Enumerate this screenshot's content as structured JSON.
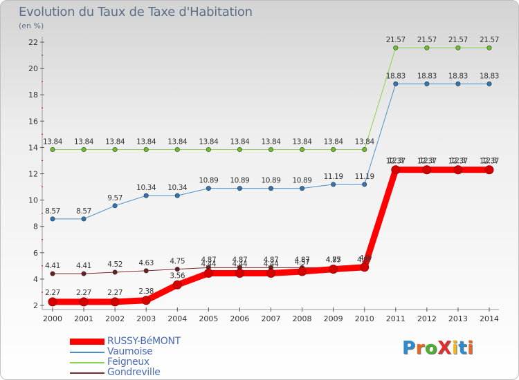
{
  "title": "Evolution du Taux de Taxe d'Habitation",
  "subtitle": "(en %)",
  "logo": {
    "text": "ProXiti",
    "letters": [
      "P",
      "r",
      "o",
      "X",
      "i",
      "t",
      "i"
    ],
    "colors": [
      "#2e8bd0",
      "#e8682a",
      "#4caf2f",
      "#e22d2d",
      "#f2b51c",
      "#2e8bd0",
      "#e8682a"
    ]
  },
  "chart_data": {
    "type": "line",
    "title": "Evolution du Taux de Taxe d'Habitation",
    "subtitle": "(en %)",
    "x": [
      "2000",
      "2001",
      "2002",
      "2003",
      "2004",
      "2005",
      "2006",
      "2007",
      "2008",
      "2009",
      "2010",
      "2011",
      "2012",
      "2013",
      "2014"
    ],
    "ylim": [
      2,
      22
    ],
    "yticks": [
      "2",
      "4",
      "6",
      "8",
      "10",
      "12",
      "14",
      "16",
      "18",
      "20",
      "22"
    ],
    "grid": false,
    "legend_position": "bottom-left",
    "series": [
      {
        "name": "RUSSY-BéMONT",
        "color": "#ff0000",
        "marker": "#d40000",
        "width": 9,
        "labels_above": false,
        "values": [
          2.27,
          2.27,
          2.27,
          2.38,
          3.56,
          4.44,
          4.44,
          4.44,
          4.57,
          4.75,
          4.9,
          12.3,
          12.3,
          12.3,
          12.3
        ],
        "labels": [
          "2.27",
          "2.27",
          "2.27",
          "2.38",
          "3.56",
          "4.44",
          "4.44",
          "4.44",
          "4.57",
          "4.75",
          "4.9",
          "12.3",
          "12.3",
          "12.3",
          "12.3"
        ]
      },
      {
        "name": "Vaumoise",
        "color": "#4b8fc9",
        "marker": "#2f74b5",
        "width": 1,
        "labels_above": true,
        "values": [
          8.57,
          8.57,
          9.57,
          10.34,
          10.34,
          10.89,
          10.89,
          10.89,
          10.89,
          11.19,
          11.19,
          18.83,
          18.83,
          18.83,
          18.83
        ],
        "labels": [
          "8.57",
          "8.57",
          "9.57",
          "10.34",
          "10.34",
          "10.89",
          "10.89",
          "10.89",
          "10.89",
          "11.19",
          "11.19",
          "18.83",
          "18.83",
          "18.83",
          "18.83"
        ]
      },
      {
        "name": "Feigneux",
        "color": "#8ad24a",
        "marker": "#6cbf2a",
        "width": 1,
        "labels_above": true,
        "values": [
          13.84,
          13.84,
          13.84,
          13.84,
          13.84,
          13.84,
          13.84,
          13.84,
          13.84,
          13.84,
          13.84,
          21.57,
          21.57,
          21.57,
          21.57
        ],
        "labels": [
          "13.84",
          "13.84",
          "13.84",
          "13.84",
          "13.84",
          "13.84",
          "13.84",
          "13.84",
          "13.84",
          "13.84",
          "13.84",
          "21.57",
          "21.57",
          "21.57",
          "21.57"
        ]
      },
      {
        "name": "Gondreville",
        "color": "#7a2a2a",
        "marker": "#6a1f1f",
        "width": 1,
        "labels_above": true,
        "values": [
          4.41,
          4.41,
          4.52,
          4.63,
          4.75,
          4.87,
          4.87,
          4.87,
          4.87,
          4.87,
          4.87,
          12.37,
          12.37,
          12.37,
          12.37
        ],
        "labels": [
          "4.41",
          "4.41",
          "4.52",
          "4.63",
          "4.75",
          "4.87",
          "4.87",
          "4.87",
          "4.87",
          "4.87",
          "4.87",
          "12.37",
          "12.37",
          "12.37",
          "12.37"
        ]
      }
    ]
  }
}
